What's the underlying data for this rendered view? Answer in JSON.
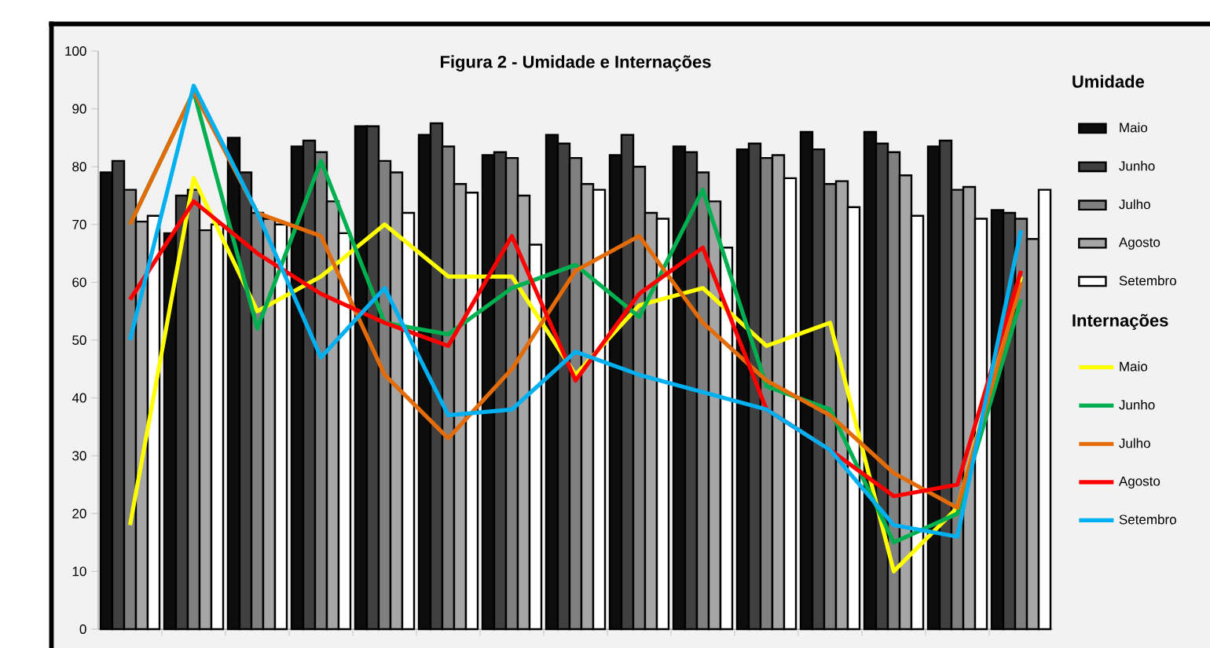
{
  "chart_data": {
    "type": "bar",
    "title": "Figura 2 - Umidade e Internações",
    "legend_title": "Umidade",
    "annotations": [
      "Internações"
    ],
    "legend": "right",
    "categories": [
      null,
      null,
      null,
      null,
      null,
      null,
      null,
      null,
      null,
      null,
      null,
      null,
      null,
      null,
      null
    ],
    "ylim": [
      0,
      100
    ],
    "yticks": [
      0,
      10,
      20,
      30,
      40,
      50,
      60,
      70,
      80,
      90,
      100
    ],
    "series": [
      {
        "name": "Maio",
        "color": "#0d0d0d",
        "values": [
          79,
          68.5,
          85,
          83.5,
          87,
          85.5,
          82,
          85.5,
          82,
          83.5,
          83,
          86,
          86,
          83.5,
          72.5
        ]
      },
      {
        "name": "Junho",
        "color": "#404040",
        "values": [
          81,
          75,
          79,
          84.5,
          87,
          87.5,
          82.5,
          84,
          85.5,
          82.5,
          84,
          83,
          84,
          84.5,
          72
        ]
      },
      {
        "name": "Julho",
        "color": "#808080",
        "values": [
          76,
          76,
          72,
          82.5,
          81,
          83.5,
          81.5,
          81.5,
          80,
          79,
          81.5,
          77,
          82.5,
          76,
          71
        ]
      },
      {
        "name": "Agosto",
        "color": "#a6a6a6",
        "values": [
          70.5,
          69,
          71,
          74,
          79,
          77,
          75,
          77,
          72,
          74,
          82,
          77.5,
          78.5,
          76.5,
          67.5
        ]
      },
      {
        "name": "Setembro",
        "color": "#ffffff",
        "values": [
          71.5,
          70,
          70,
          68.5,
          72,
          75.5,
          66.5,
          76,
          71,
          66,
          78,
          73,
          71.5,
          71,
          76
        ]
      },
      {
        "name": "Maio",
        "type": "line",
        "color": "#ffff00",
        "values": [
          18,
          78,
          55,
          61,
          70,
          61,
          61,
          44,
          56,
          59,
          49,
          53,
          10,
          21,
          61
        ]
      },
      {
        "name": "Junho",
        "type": "line",
        "color": "#00b050",
        "values": [
          70,
          93,
          52,
          81,
          53,
          51,
          59,
          63,
          54,
          76,
          42,
          38,
          15,
          20,
          57
        ]
      },
      {
        "name": "Julho",
        "type": "line",
        "color": "#e36c09",
        "values": [
          70,
          93,
          72,
          68,
          44,
          33,
          45,
          62,
          68,
          53,
          43,
          37,
          27,
          21,
          60
        ]
      },
      {
        "name": "Agosto",
        "type": "line",
        "color": "#ff0000",
        "values": [
          57,
          74,
          65,
          58,
          53,
          49,
          68,
          43,
          58,
          66,
          38,
          31,
          23,
          25,
          62
        ]
      },
      {
        "name": "Setembro",
        "type": "line",
        "color": "#00b0f0",
        "values": [
          50,
          94,
          72,
          47,
          59,
          37,
          38,
          48,
          44,
          41,
          38,
          31,
          18,
          16,
          69
        ]
      }
    ]
  }
}
